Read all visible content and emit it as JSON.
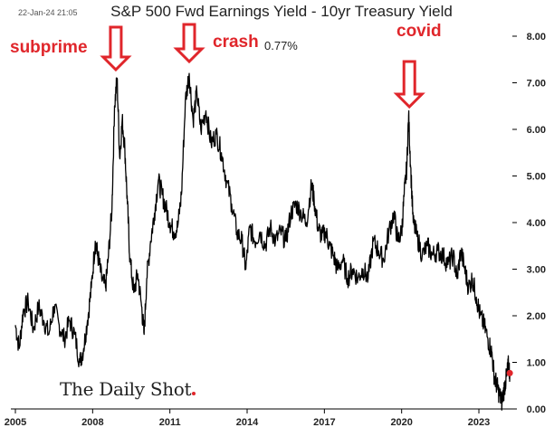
{
  "header": {
    "timestamp": "22-Jan-24 21:05",
    "title": "S&P 500 Fwd Earnings Yield - 10yr Treasury Yield",
    "latest_value_label": "0.77%"
  },
  "annotations": [
    {
      "text": "subprime",
      "x": 2008.9
    },
    {
      "text": "crash",
      "x": 2011.75
    },
    {
      "text": "covid",
      "x": 2020.3
    }
  ],
  "watermark": "The Daily Shot",
  "colors": {
    "line": "#000000",
    "annotation": "#e0262b",
    "latest_point": "#e0262b",
    "axis": "#000000"
  },
  "chart_data": {
    "type": "line",
    "title": "S&P 500 Fwd Earnings Yield - 10yr Treasury Yield",
    "xlabel": "",
    "ylabel": "",
    "xlim": [
      2005.0,
      2024.3
    ],
    "ylim": [
      0.0,
      8.0
    ],
    "x_ticks": [
      2005,
      2008,
      2011,
      2014,
      2017,
      2020,
      2023
    ],
    "y_ticks": [
      0.0,
      1.0,
      2.0,
      3.0,
      4.0,
      5.0,
      6.0,
      7.0,
      8.0
    ],
    "y_tick_labels": [
      "0.00",
      "1.00",
      "2.00",
      "3.00",
      "4.00",
      "5.00",
      "6.00",
      "7.00",
      "8.00"
    ],
    "y_axis_side": "right",
    "grid": false,
    "series": [
      {
        "values_xy": [
          [
            2005.0,
            1.8
          ],
          [
            2005.15,
            1.3
          ],
          [
            2005.3,
            2.1
          ],
          [
            2005.5,
            2.3
          ],
          [
            2005.7,
            1.7
          ],
          [
            2005.9,
            2.2
          ],
          [
            2006.1,
            1.9
          ],
          [
            2006.3,
            1.6
          ],
          [
            2006.5,
            2.2
          ],
          [
            2006.7,
            1.8
          ],
          [
            2006.9,
            1.5
          ],
          [
            2007.1,
            1.9
          ],
          [
            2007.3,
            1.6
          ],
          [
            2007.5,
            1.0
          ],
          [
            2007.65,
            1.3
          ],
          [
            2007.8,
            1.9
          ],
          [
            2007.95,
            2.6
          ],
          [
            2008.1,
            3.6
          ],
          [
            2008.2,
            3.3
          ],
          [
            2008.35,
            2.8
          ],
          [
            2008.5,
            2.6
          ],
          [
            2008.6,
            3.2
          ],
          [
            2008.75,
            4.3
          ],
          [
            2008.85,
            6.5
          ],
          [
            2008.95,
            7.1
          ],
          [
            2009.05,
            5.4
          ],
          [
            2009.15,
            6.2
          ],
          [
            2009.25,
            5.6
          ],
          [
            2009.35,
            4.4
          ],
          [
            2009.45,
            3.2
          ],
          [
            2009.6,
            2.5
          ],
          [
            2009.75,
            2.9
          ],
          [
            2009.9,
            2.2
          ],
          [
            2010.0,
            1.6
          ],
          [
            2010.1,
            2.8
          ],
          [
            2010.25,
            3.6
          ],
          [
            2010.4,
            4.2
          ],
          [
            2010.55,
            4.9
          ],
          [
            2010.7,
            4.6
          ],
          [
            2010.85,
            4.3
          ],
          [
            2011.0,
            4.0
          ],
          [
            2011.15,
            3.8
          ],
          [
            2011.3,
            3.9
          ],
          [
            2011.45,
            4.6
          ],
          [
            2011.6,
            6.6
          ],
          [
            2011.75,
            7.2
          ],
          [
            2011.9,
            6.2
          ],
          [
            2012.05,
            6.8
          ],
          [
            2012.2,
            6.0
          ],
          [
            2012.4,
            6.4
          ],
          [
            2012.6,
            5.7
          ],
          [
            2012.8,
            5.9
          ],
          [
            2013.0,
            5.5
          ],
          [
            2013.2,
            4.9
          ],
          [
            2013.4,
            4.4
          ],
          [
            2013.6,
            3.8
          ],
          [
            2013.8,
            3.6
          ],
          [
            2013.95,
            3.0
          ],
          [
            2014.1,
            3.9
          ],
          [
            2014.3,
            3.6
          ],
          [
            2014.5,
            3.8
          ],
          [
            2014.7,
            3.5
          ],
          [
            2014.9,
            3.9
          ],
          [
            2015.1,
            3.6
          ],
          [
            2015.3,
            3.8
          ],
          [
            2015.5,
            3.6
          ],
          [
            2015.7,
            4.2
          ],
          [
            2015.9,
            4.4
          ],
          [
            2016.1,
            4.2
          ],
          [
            2016.3,
            4.0
          ],
          [
            2016.5,
            4.8
          ],
          [
            2016.6,
            4.5
          ],
          [
            2016.75,
            3.9
          ],
          [
            2016.9,
            3.7
          ],
          [
            2017.05,
            3.8
          ],
          [
            2017.2,
            3.5
          ],
          [
            2017.35,
            3.3
          ],
          [
            2017.5,
            3.0
          ],
          [
            2017.7,
            3.2
          ],
          [
            2017.9,
            2.8
          ],
          [
            2018.1,
            3.0
          ],
          [
            2018.3,
            2.8
          ],
          [
            2018.5,
            3.0
          ],
          [
            2018.7,
            2.8
          ],
          [
            2018.9,
            3.6
          ],
          [
            2019.1,
            3.4
          ],
          [
            2019.3,
            3.2
          ],
          [
            2019.5,
            3.8
          ],
          [
            2019.7,
            4.2
          ],
          [
            2019.85,
            3.6
          ],
          [
            2020.0,
            3.8
          ],
          [
            2020.1,
            4.6
          ],
          [
            2020.2,
            5.2
          ],
          [
            2020.27,
            6.3
          ],
          [
            2020.35,
            5.2
          ],
          [
            2020.45,
            4.0
          ],
          [
            2020.6,
            3.7
          ],
          [
            2020.8,
            3.3
          ],
          [
            2021.0,
            3.5
          ],
          [
            2021.2,
            3.3
          ],
          [
            2021.4,
            3.4
          ],
          [
            2021.6,
            3.3
          ],
          [
            2021.8,
            3.1
          ],
          [
            2022.0,
            3.3
          ],
          [
            2022.15,
            2.8
          ],
          [
            2022.3,
            3.4
          ],
          [
            2022.45,
            3.0
          ],
          [
            2022.6,
            2.6
          ],
          [
            2022.75,
            2.8
          ],
          [
            2022.9,
            2.4
          ],
          [
            2023.05,
            2.0
          ],
          [
            2023.2,
            1.8
          ],
          [
            2023.35,
            1.5
          ],
          [
            2023.5,
            1.2
          ],
          [
            2023.6,
            0.7
          ],
          [
            2023.7,
            0.5
          ],
          [
            2023.8,
            0.3
          ],
          [
            2023.9,
            0.15
          ],
          [
            2024.0,
            0.5
          ],
          [
            2024.08,
            0.7
          ],
          [
            2024.15,
            0.95
          ],
          [
            2024.2,
            0.77
          ]
        ]
      }
    ],
    "latest_point": {
      "x": 2024.2,
      "y": 0.77,
      "label": "0.77%"
    }
  }
}
